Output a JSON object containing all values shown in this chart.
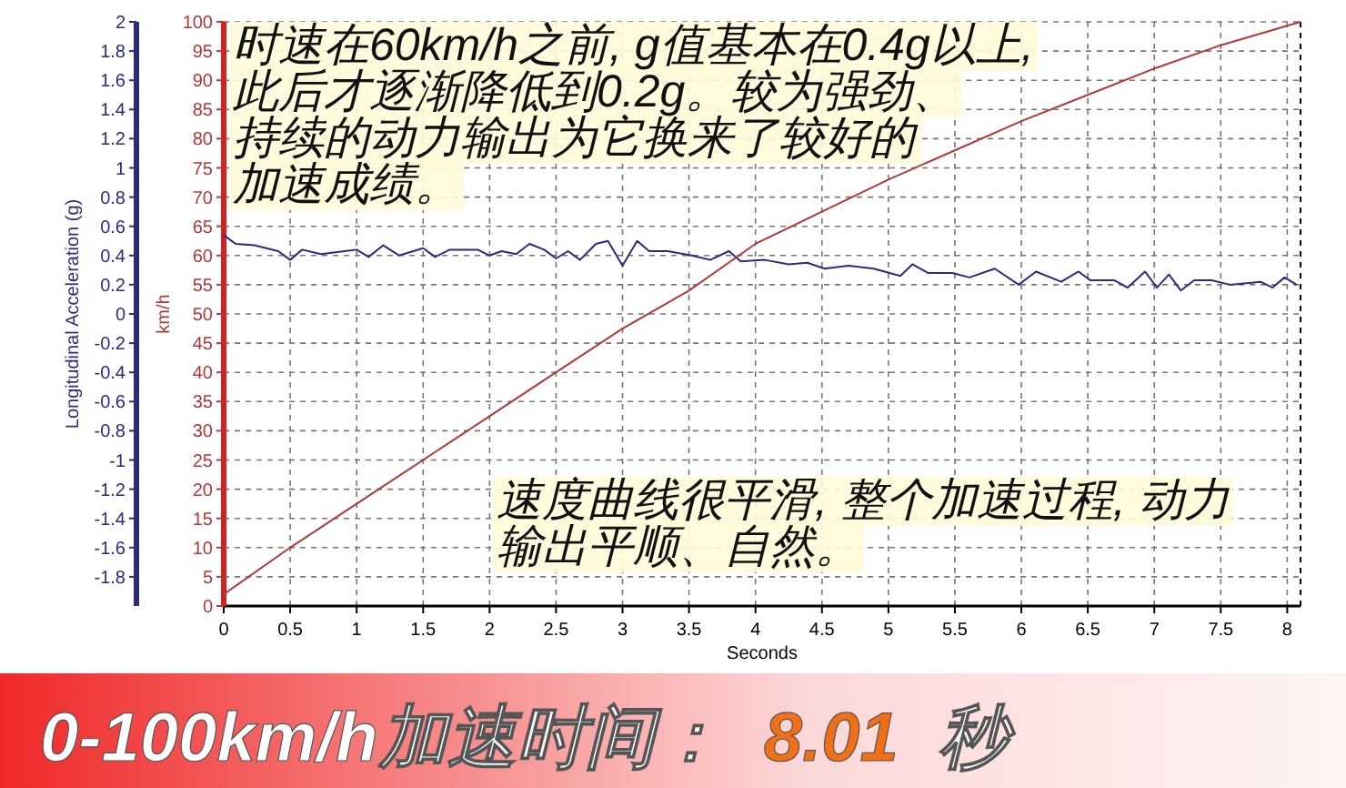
{
  "chart_data": {
    "type": "line",
    "xlabel": "Seconds",
    "ylabel": "Longitudinal Acceleration (g)",
    "y2label": "km/h",
    "xlim": [
      0,
      8.1
    ],
    "xticks": [
      0,
      0.5,
      1,
      1.5,
      2,
      2.5,
      3,
      3.5,
      4,
      4.5,
      5,
      5.5,
      6,
      6.5,
      7,
      7.5,
      8
    ],
    "ylim": [
      -2,
      2
    ],
    "yticks": [
      2,
      1.8,
      1.6,
      1.4,
      1.2,
      1,
      0.8,
      0.6,
      0.4,
      0.2,
      0,
      -0.2,
      -0.4,
      -0.6,
      -0.8,
      -1,
      -1.2,
      -1.4,
      -1.6,
      -1.8
    ],
    "y2lim": [
      0,
      100
    ],
    "y2ticks": [
      0,
      5,
      10,
      15,
      20,
      25,
      30,
      35,
      40,
      45,
      50,
      55,
      60,
      65,
      70,
      75,
      80,
      85,
      90,
      95,
      100
    ],
    "grid": true,
    "marker": "none",
    "line_style": "solid",
    "series": [
      {
        "color": "#2b2b80",
        "x": [
          0,
          0.09,
          0.23,
          0.41,
          0.5,
          0.59,
          0.73,
          0.91,
          1.0,
          1.09,
          1.2,
          1.32,
          1.5,
          1.59,
          1.7,
          1.91,
          2.0,
          2.09,
          2.2,
          2.3,
          2.41,
          2.5,
          2.59,
          2.68,
          2.8,
          2.89,
          3.0,
          3.11,
          3.2,
          3.34,
          3.52,
          3.66,
          3.8,
          3.89,
          4.07,
          4.25,
          4.39,
          4.52,
          4.7,
          4.89,
          5.09,
          5.18,
          5.3,
          5.48,
          5.61,
          5.8,
          5.98,
          6.11,
          6.3,
          6.43,
          6.52,
          6.7,
          6.8,
          6.93,
          7.02,
          7.11,
          7.2,
          7.3,
          7.43,
          7.57,
          7.8,
          7.89,
          7.98,
          8.07
        ],
        "values": [
          0.54,
          0.48,
          0.47,
          0.43,
          0.37,
          0.44,
          0.41,
          0.43,
          0.44,
          0.39,
          0.47,
          0.4,
          0.45,
          0.39,
          0.44,
          0.44,
          0.4,
          0.43,
          0.41,
          0.48,
          0.44,
          0.38,
          0.43,
          0.37,
          0.48,
          0.5,
          0.33,
          0.5,
          0.43,
          0.43,
          0.4,
          0.37,
          0.43,
          0.36,
          0.37,
          0.34,
          0.35,
          0.31,
          0.33,
          0.31,
          0.26,
          0.34,
          0.28,
          0.28,
          0.25,
          0.31,
          0.2,
          0.29,
          0.22,
          0.29,
          0.23,
          0.23,
          0.18,
          0.29,
          0.18,
          0.27,
          0.16,
          0.23,
          0.23,
          0.2,
          0.22,
          0.18,
          0.25,
          0.2
        ]
      },
      {
        "color": "#b03a3a",
        "axis": "y2",
        "x": [
          0,
          0.5,
          1,
          1.5,
          2,
          2.5,
          3,
          3.5,
          4,
          4.5,
          5,
          5.5,
          6,
          6.5,
          7,
          7.5,
          8.1
        ],
        "values": [
          2,
          10,
          17.5,
          25,
          32.5,
          40,
          47.5,
          54,
          62,
          67.5,
          73,
          78,
          83,
          87.5,
          92,
          96,
          100
        ]
      }
    ],
    "annotations": [
      "时速在60km/h之前, g值基本在0.4g以上,此后才逐渐降低到0.2g。较为强劲、持续的动力输出为它换来了较好的加速成绩。",
      "速度曲线很平滑, 整个加速过程, 动力输出平顺、自然。",
      "0-100km/h加速时间：",
      "8.01",
      "秒"
    ]
  }
}
